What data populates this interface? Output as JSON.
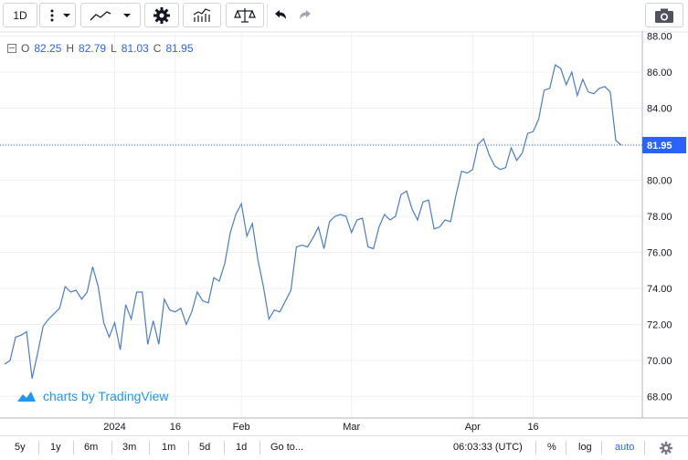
{
  "toolbar": {
    "interval": "1D",
    "icons": [
      "more-vert-icon",
      "line-chart-icon",
      "dropdown-icon",
      "settings-icon",
      "indicators-icon",
      "compare-icon",
      "undo-icon",
      "redo-icon",
      "camera-icon"
    ]
  },
  "legend": {
    "o_label": "O",
    "o": "82.25",
    "h_label": "H",
    "h": "82.79",
    "l_label": "L",
    "l": "81.03",
    "c_label": "C",
    "c": "81.95"
  },
  "branding": "charts by TradingView",
  "bottom": {
    "ranges": [
      "5y",
      "1y",
      "6m",
      "3m",
      "1m",
      "5d",
      "1d"
    ],
    "goto": "Go to...",
    "time": "06:03:33 (UTC)",
    "percent": "%",
    "log": "log",
    "auto": "auto"
  },
  "colors": {
    "line": "#4a7dcc",
    "accent": "#2962ff",
    "price_badge": "#2962ff",
    "grid": "#eef0f4"
  },
  "chart_data": {
    "type": "line",
    "title": "",
    "xlabel": "",
    "ylabel": "",
    "ylim": [
      67,
      88.5
    ],
    "y_ticks": [
      68,
      70,
      72,
      74,
      76,
      78,
      80,
      82,
      84,
      86,
      88
    ],
    "y_tick_labels": [
      "68.00",
      "70.00",
      "72.00",
      "74.00",
      "76.00",
      "78.00",
      "80.00",
      "82.00",
      "84.00",
      "86.00",
      "88.00"
    ],
    "x_ticks": [
      {
        "label": "2024",
        "i": 20
      },
      {
        "label": "16",
        "i": 31
      },
      {
        "label": "Feb",
        "i": 43
      },
      {
        "label": "Mar",
        "i": 63
      },
      {
        "label": "Apr",
        "i": 85
      },
      {
        "label": "16",
        "i": 96
      }
    ],
    "last_price": "81.95",
    "last_value": 81.95,
    "grid": true,
    "series": [
      {
        "values": [
          69.8,
          70.0,
          71.3,
          71.4,
          71.6,
          69.0,
          70.4,
          71.9,
          72.3,
          72.6,
          72.9,
          74.1,
          73.8,
          73.9,
          73.4,
          73.8,
          75.2,
          74.1,
          72.1,
          71.3,
          72.1,
          70.6,
          73.1,
          72.3,
          73.8,
          73.8,
          70.9,
          72.2,
          70.9,
          73.4,
          72.8,
          72.7,
          72.9,
          72.0,
          72.7,
          73.8,
          73.3,
          73.2,
          74.6,
          74.4,
          75.4,
          77.1,
          78.1,
          78.7,
          76.9,
          77.6,
          75.6,
          74.1,
          72.3,
          72.8,
          72.7,
          73.3,
          73.9,
          76.3,
          76.4,
          76.3,
          76.8,
          77.4,
          76.2,
          77.7,
          78.0,
          78.1,
          78.0,
          77.1,
          77.8,
          77.9,
          76.3,
          76.2,
          77.4,
          78.1,
          77.8,
          78.0,
          79.2,
          79.4,
          78.4,
          77.8,
          78.8,
          78.9,
          77.3,
          77.4,
          77.8,
          77.7,
          79.2,
          80.5,
          80.4,
          80.6,
          82.0,
          82.3,
          81.4,
          80.8,
          80.6,
          80.7,
          81.8,
          81.1,
          81.5,
          82.6,
          82.7,
          83.4,
          85.0,
          85.1,
          86.4,
          86.2,
          85.3,
          86.0,
          84.7,
          85.6,
          84.9,
          84.8,
          85.1,
          85.2,
          84.9,
          82.2,
          81.95
        ]
      }
    ]
  }
}
